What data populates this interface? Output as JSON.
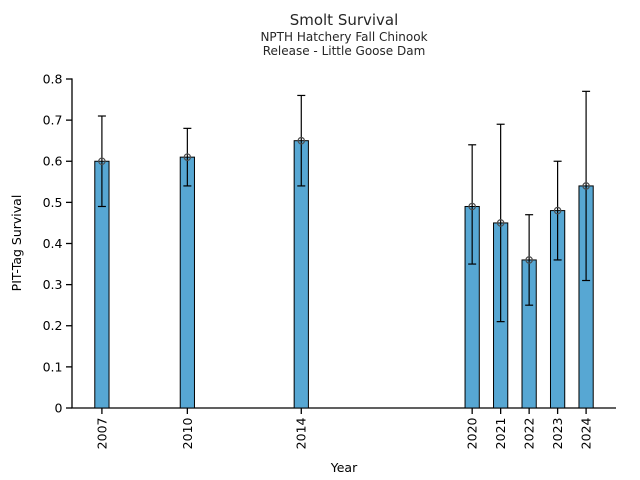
{
  "figure": {
    "title": "Smolt Survival",
    "subtitle_line1": "NPTH Hatchery Fall Chinook",
    "subtitle_line2": "Release - Little Goose Dam"
  },
  "chart_data": {
    "type": "bar",
    "title": "Smolt Survival",
    "subtitle1": "NPTH Hatchery Fall Chinook",
    "subtitle2": "Release - Little Goose Dam",
    "xlabel": "Year",
    "ylabel": "PIT-Tag Survival",
    "categories": [
      2007,
      2010,
      2014,
      2020,
      2021,
      2022,
      2023,
      2024
    ],
    "values": [
      0.6,
      0.61,
      0.65,
      0.49,
      0.45,
      0.36,
      0.48,
      0.54
    ],
    "error_low": [
      0.49,
      0.54,
      0.54,
      0.35,
      0.21,
      0.25,
      0.36,
      0.31
    ],
    "error_high": [
      0.71,
      0.68,
      0.76,
      0.64,
      0.69,
      0.47,
      0.6,
      0.77
    ],
    "ylim": [
      0,
      0.8
    ],
    "xlim": [
      2005.95,
      2025.05
    ],
    "yticks": [
      0,
      0.1,
      0.2,
      0.3,
      0.4,
      0.5,
      0.6,
      0.7,
      0.8
    ],
    "ytick_labels": [
      "0",
      "0.1",
      "0.2",
      "0.3",
      "0.4",
      "0.5",
      "0.6",
      "0.7",
      "0.8"
    ],
    "xtick_labels": [
      "2007",
      "2010",
      "2014",
      "2020",
      "2021",
      "2022",
      "2023",
      "2024"
    ],
    "xtick_rotation_deg": 90,
    "bar_width_years": 0.5,
    "bar_color": "#57a7d3",
    "bar_edge_color": "#000000",
    "error_color": "#000000",
    "marker": "open-circle",
    "marker_color": "#4d4d4d",
    "grid": false,
    "legend": null
  }
}
